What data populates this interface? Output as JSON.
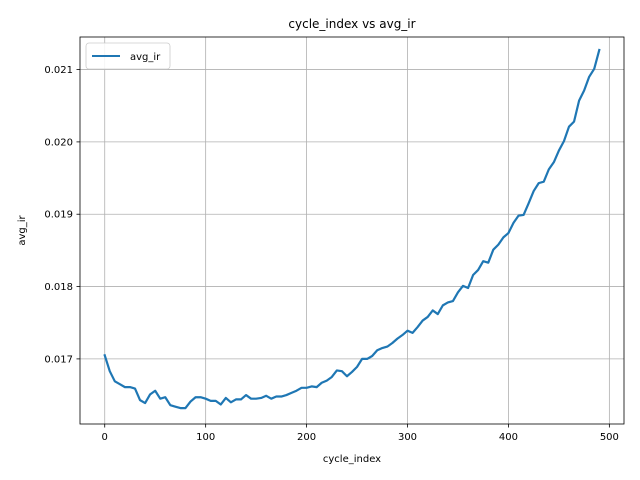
{
  "chart_data": {
    "type": "line",
    "title": "cycle_index vs avg_ir",
    "xlabel": "cycle_index",
    "ylabel": "avg_ir",
    "xlim": [
      -24.5,
      514.5
    ],
    "ylim": [
      0.0161,
      0.02145
    ],
    "xticks": [
      0,
      100,
      200,
      300,
      400,
      500
    ],
    "xtick_labels": [
      "0",
      "100",
      "200",
      "300",
      "400",
      "500"
    ],
    "yticks": [
      0.017,
      0.018,
      0.019,
      0.02,
      0.021
    ],
    "ytick_labels": [
      "0.017",
      "0.018",
      "0.019",
      "0.020",
      "0.021"
    ],
    "grid": true,
    "legend": "top-left",
    "series_color": "#1f77b4",
    "series": [
      {
        "name": "avg_ir",
        "x": [
          0,
          5,
          10,
          15,
          20,
          25,
          30,
          35,
          40,
          45,
          50,
          55,
          60,
          65,
          70,
          75,
          80,
          85,
          90,
          95,
          100,
          105,
          110,
          115,
          120,
          125,
          130,
          135,
          140,
          145,
          150,
          155,
          160,
          165,
          170,
          175,
          180,
          185,
          190,
          195,
          200,
          205,
          210,
          215,
          220,
          225,
          230,
          235,
          240,
          245,
          250,
          255,
          260,
          265,
          270,
          275,
          280,
          285,
          290,
          295,
          300,
          305,
          310,
          315,
          320,
          325,
          330,
          335,
          340,
          345,
          350,
          355,
          360,
          365,
          370,
          375,
          380,
          385,
          390,
          395,
          400,
          405,
          410,
          415,
          420,
          425,
          430,
          435,
          440,
          445,
          450,
          455,
          460,
          465,
          470,
          475,
          480,
          485,
          490
        ],
        "values": [
          0.01705,
          0.01683,
          0.01669,
          0.01665,
          0.01661,
          0.01661,
          0.01659,
          0.01643,
          0.01639,
          0.01651,
          0.01656,
          0.01645,
          0.01647,
          0.01636,
          0.01634,
          0.01632,
          0.01632,
          0.01641,
          0.01647,
          0.01647,
          0.01645,
          0.01642,
          0.01642,
          0.01637,
          0.01646,
          0.0164,
          0.01644,
          0.01644,
          0.0165,
          0.01645,
          0.01645,
          0.01646,
          0.01649,
          0.01645,
          0.01648,
          0.01648,
          0.0165,
          0.01653,
          0.01656,
          0.0166,
          0.0166,
          0.01662,
          0.01661,
          0.01667,
          0.0167,
          0.01675,
          0.01684,
          0.01683,
          0.01676,
          0.01682,
          0.01689,
          0.017,
          0.017,
          0.01704,
          0.01712,
          0.01715,
          0.01717,
          0.01722,
          0.01728,
          0.01733,
          0.01739,
          0.01736,
          0.01744,
          0.01753,
          0.01758,
          0.01767,
          0.01762,
          0.01774,
          0.01778,
          0.0178,
          0.01792,
          0.01801,
          0.01798,
          0.01816,
          0.01823,
          0.01835,
          0.01833,
          0.01851,
          0.01858,
          0.01868,
          0.01874,
          0.01888,
          0.01898,
          0.01899,
          0.01915,
          0.01932,
          0.01943,
          0.01945,
          0.01962,
          0.01972,
          0.01988,
          0.02001,
          0.02021,
          0.02028,
          0.02057,
          0.02071,
          0.0209,
          0.02101,
          0.02127
        ]
      }
    ]
  }
}
